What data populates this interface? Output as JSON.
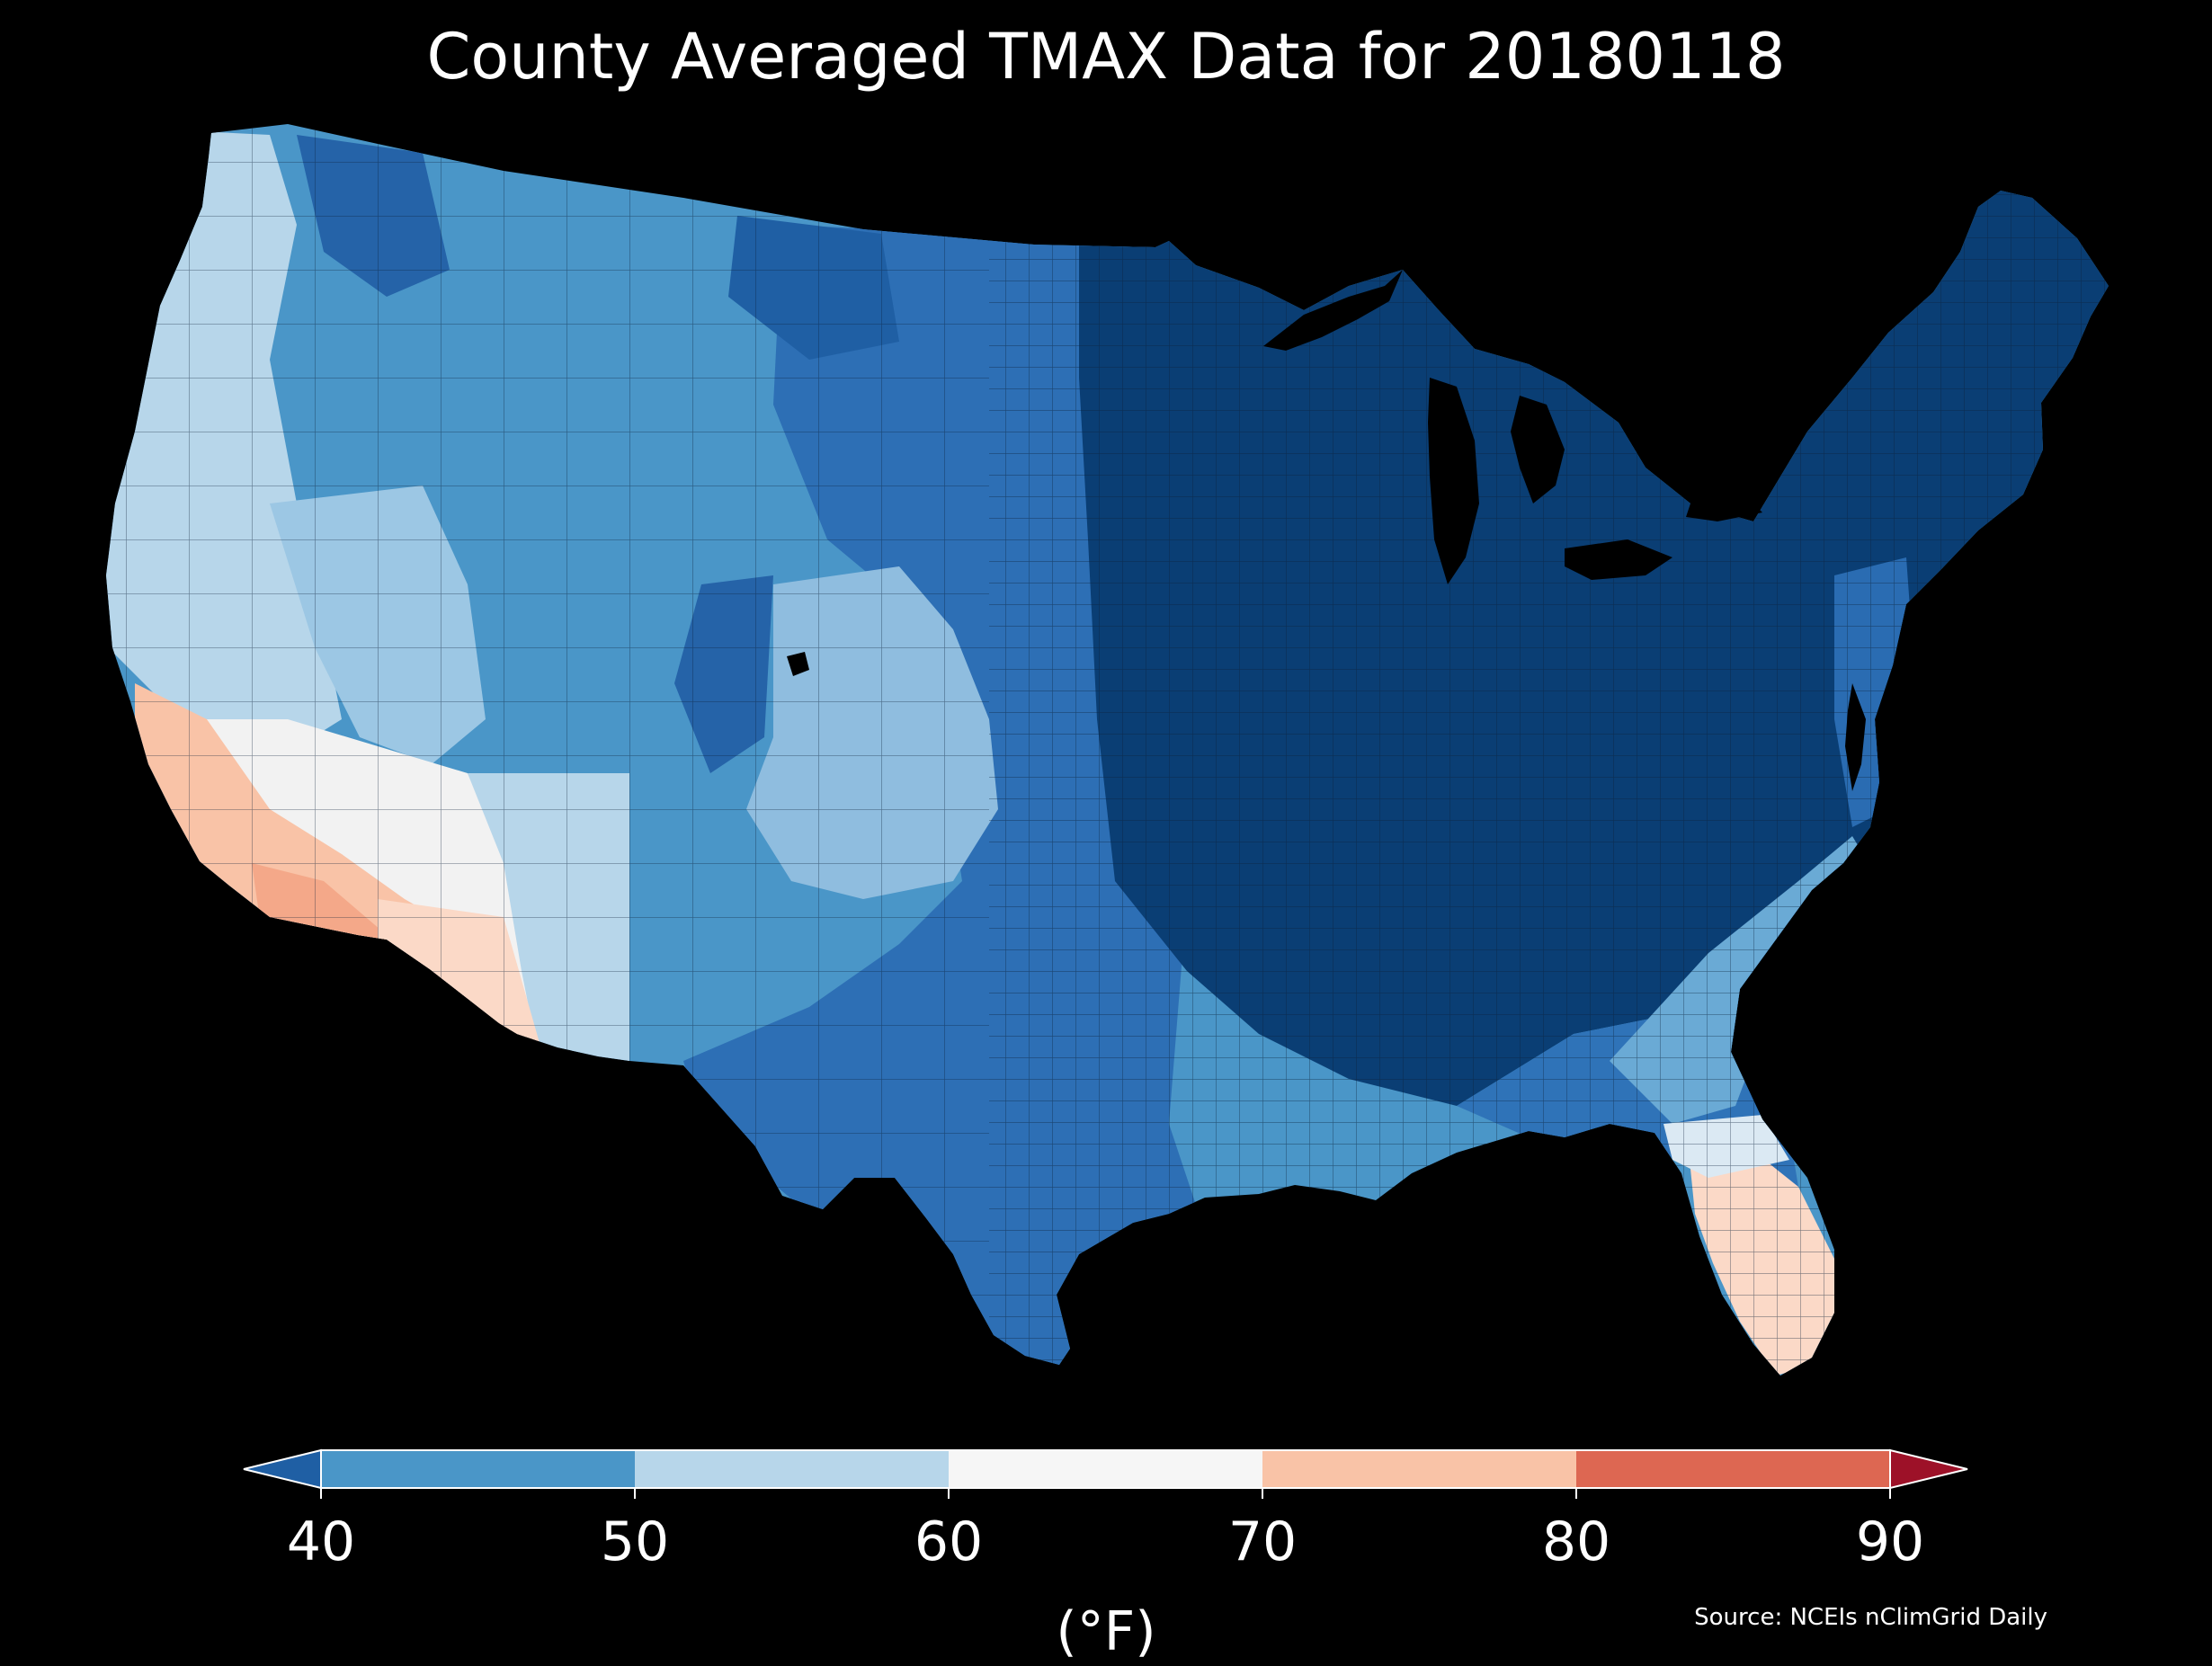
{
  "title": "County Averaged TMAX Data for 20180118",
  "colorbar": {
    "ticks": [
      "40",
      "50",
      "60",
      "70",
      "80",
      "90"
    ],
    "units": "(°F)",
    "bins": [
      {
        "from": 40,
        "to": 50,
        "color": "#4a96c8"
      },
      {
        "from": 50,
        "to": 60,
        "color": "#b7d6ea"
      },
      {
        "from": 60,
        "to": 70,
        "color": "#f6f6f6"
      },
      {
        "from": 70,
        "to": 80,
        "color": "#f9c3a7"
      },
      {
        "from": 80,
        "to": 90,
        "color": "#dd6752"
      }
    ],
    "under_color": "#1f5fa4",
    "over_color": "#9d1128"
  },
  "source": "Source: NCEIs nClimGrid Daily",
  "regions": [
    {
      "name": "east-central-cold-region",
      "tmax_f": "<40",
      "color": "#0a3e74"
    },
    {
      "name": "plains-and-texas-region",
      "tmax_f": "<40",
      "color": "#2d6fb5"
    },
    {
      "name": "western-interior-region",
      "tmax_f": "40-50",
      "color": "#4a96c8"
    },
    {
      "name": "southern-plains-band-region",
      "tmax_f": "50-60",
      "color": "#8fbddf"
    },
    {
      "name": "west-coast-region",
      "tmax_f": "50-60",
      "color": "#b7d6ea"
    },
    {
      "name": "desert-southwest-region",
      "tmax_f": "60-70",
      "color": "#f2f2f2"
    },
    {
      "name": "southern-california-arizona-region",
      "tmax_f": "70-80",
      "color": "#f9c3a7"
    },
    {
      "name": "florida-region",
      "tmax_f": "70-80",
      "color": "#fbd9c7"
    }
  ]
}
